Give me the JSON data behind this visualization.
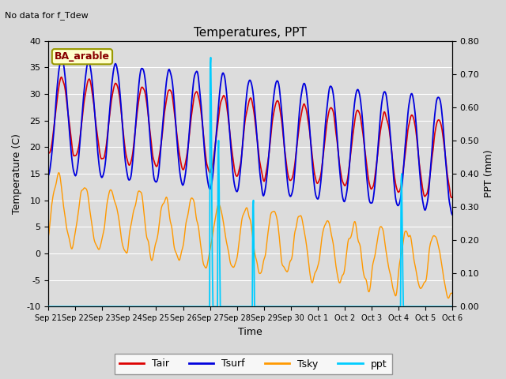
{
  "title": "Temperatures, PPT",
  "subtitle": "No data for f_Tdew",
  "station_label": "BA_arable",
  "xlabel": "Time",
  "ylabel_left": "Temperature (C)",
  "ylabel_right": "PPT (mm)",
  "ylim_left": [
    -10,
    40
  ],
  "ylim_right": [
    0.0,
    0.8
  ],
  "yticks_left": [
    -10,
    -5,
    0,
    5,
    10,
    15,
    20,
    25,
    30,
    35,
    40
  ],
  "yticks_right": [
    0.0,
    0.1,
    0.2,
    0.3,
    0.4,
    0.5,
    0.6,
    0.7,
    0.8
  ],
  "colors": {
    "Tair": "#dd0000",
    "Tsurf": "#0000dd",
    "Tsky": "#ff9900",
    "ppt": "#00ccff",
    "figure_bg": "#d8d8d8",
    "plot_bg": "#dcdcdc"
  },
  "legend": [
    "Tair",
    "Tsurf",
    "Tsky",
    "ppt"
  ],
  "xtick_labels": [
    "Sep 21",
    "Sep 22",
    "Sep 23",
    "Sep 24",
    "Sep 25",
    "Sep 26",
    "Sep 27",
    "Sep 28",
    "Sep 29",
    "Sep 30",
    "Oct 1",
    "Oct 2",
    "Oct 3",
    "Oct 4",
    "Oct 5",
    "Oct 6"
  ]
}
